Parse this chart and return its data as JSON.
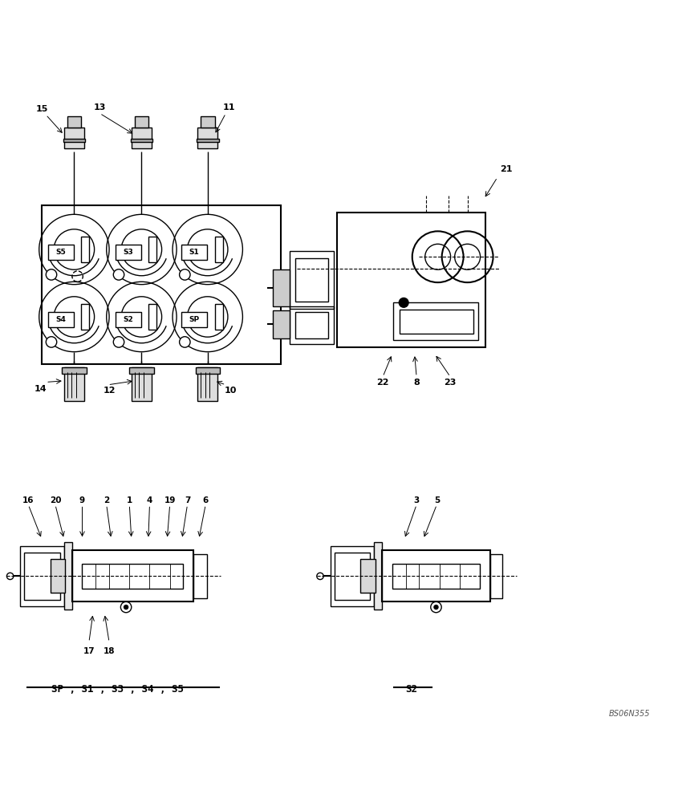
{
  "bg_color": "#ffffff",
  "line_color": "#000000",
  "caption_left": "SP , S1 , S3 , S4 , S5",
  "caption_right": "S2",
  "watermark": "BS06N355"
}
